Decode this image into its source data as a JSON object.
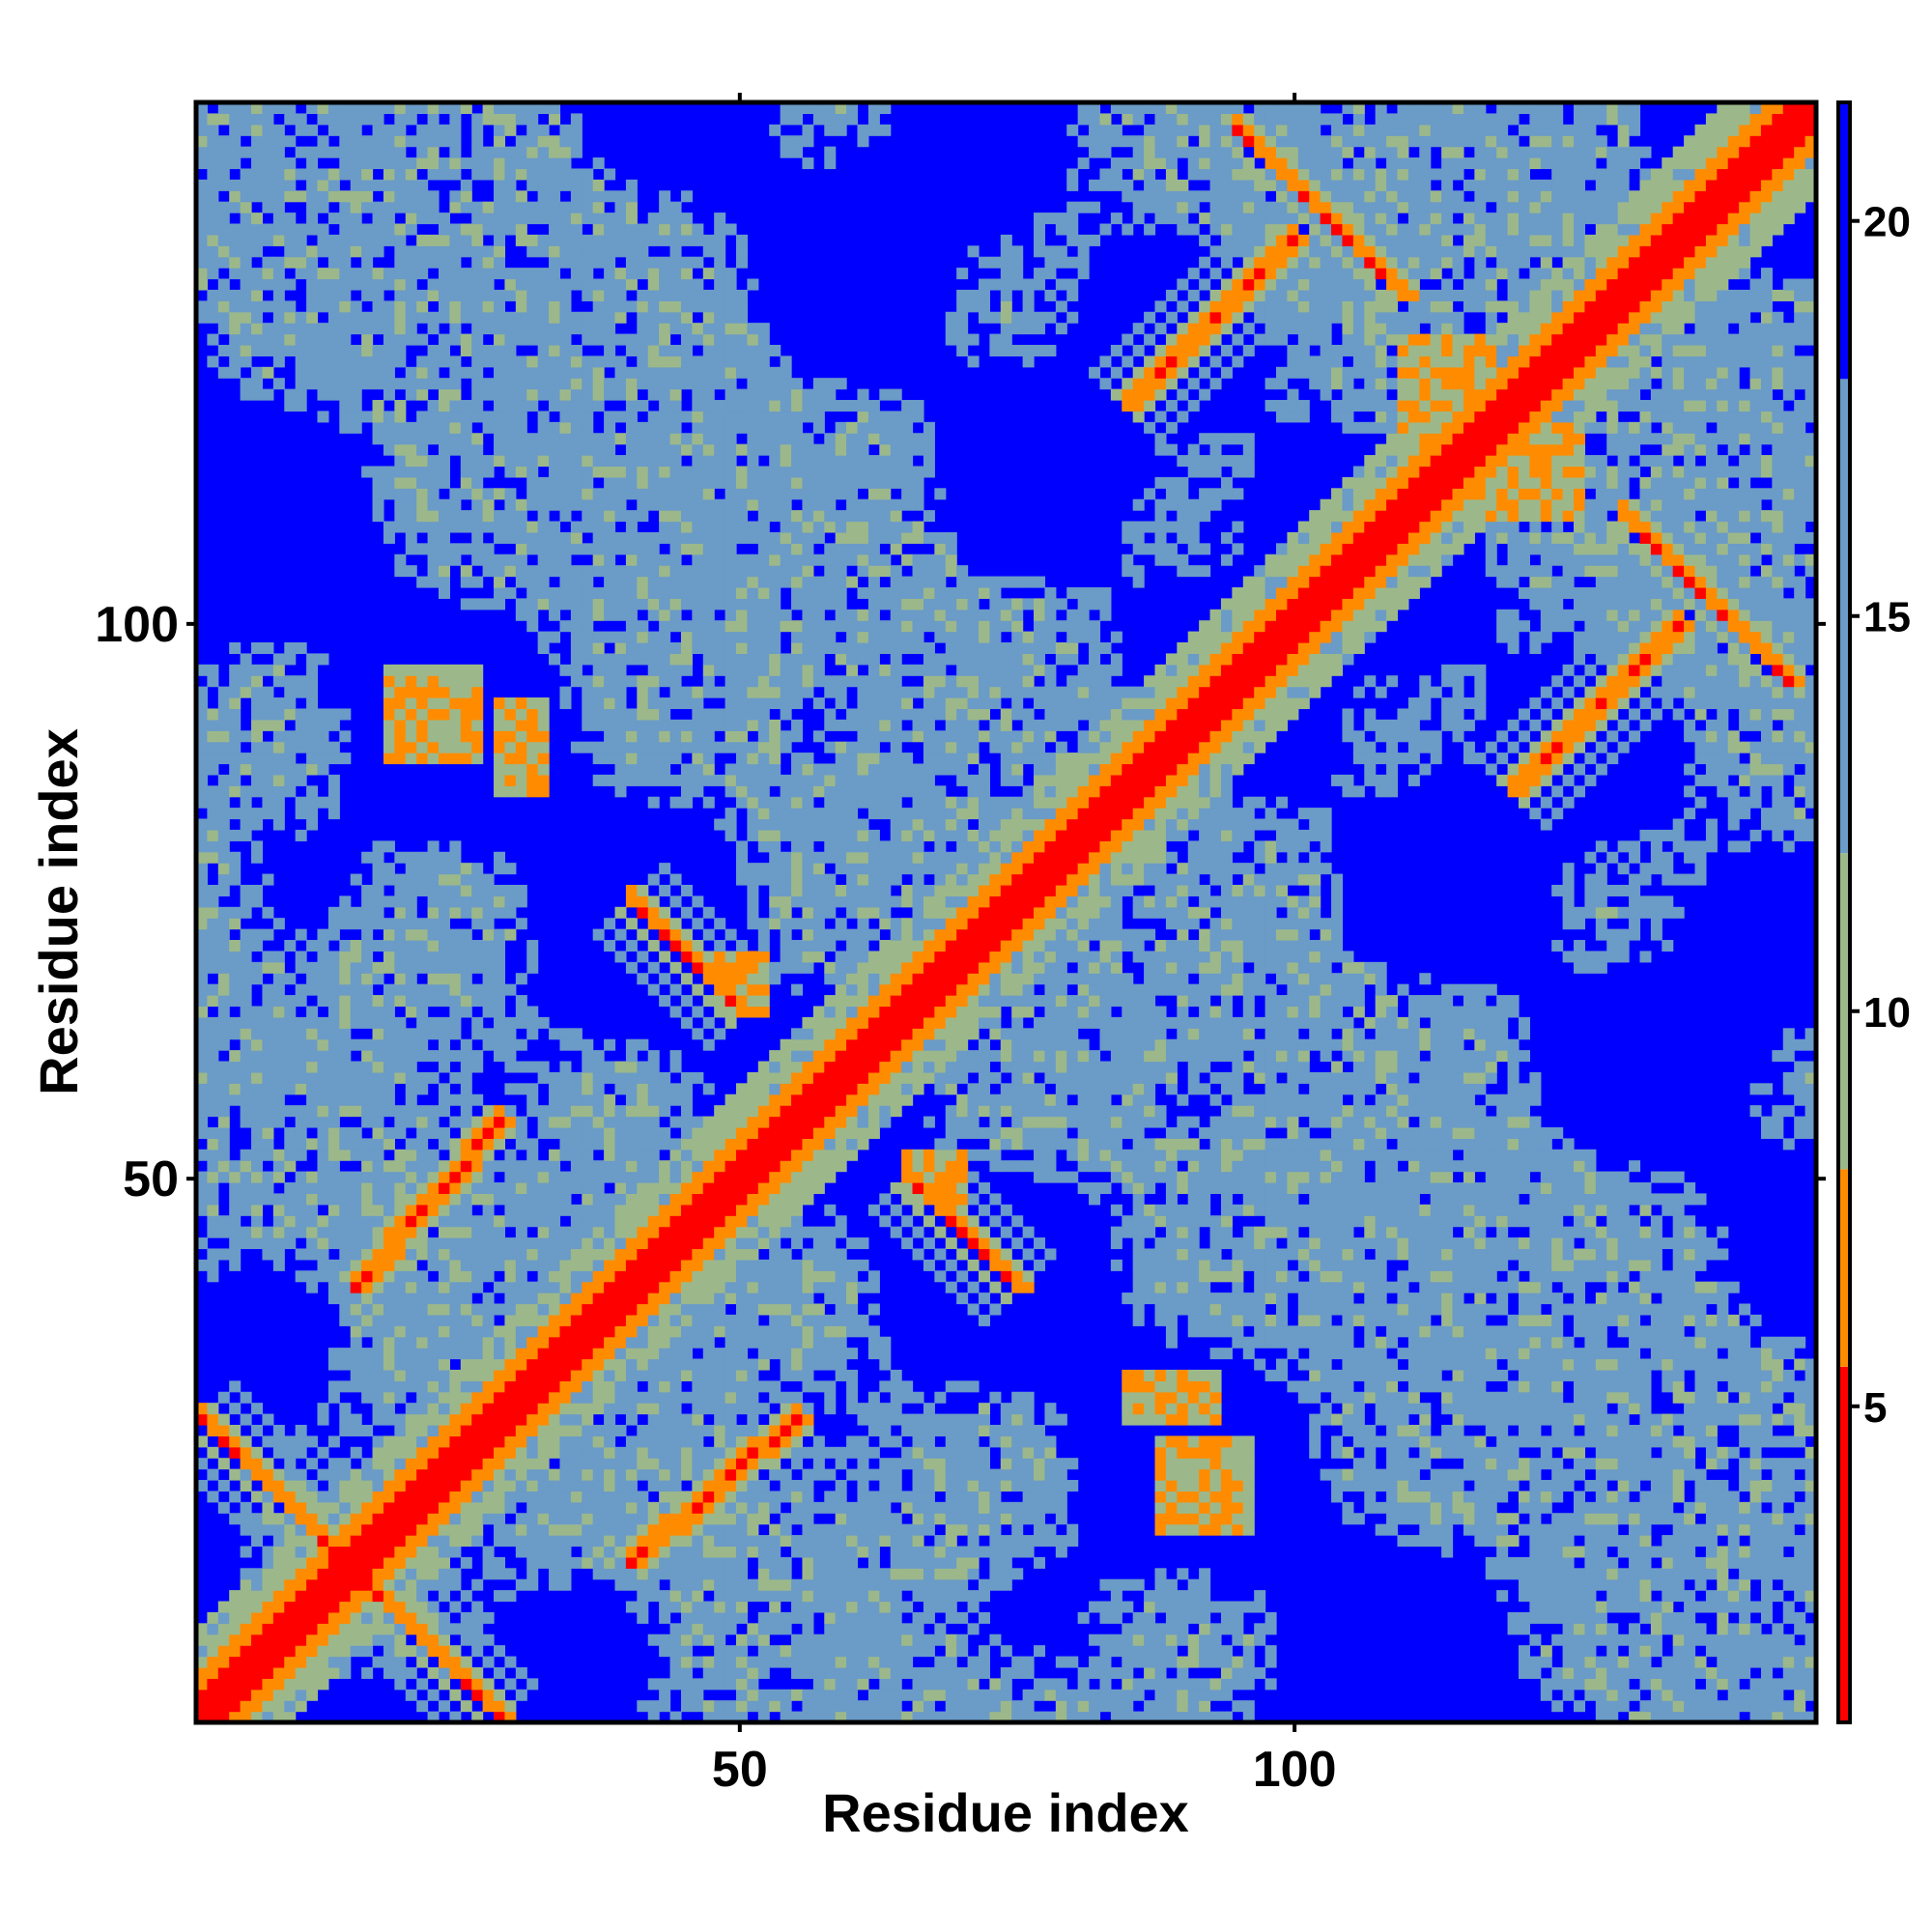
{
  "chart_data": {
    "type": "heatmap",
    "title": "",
    "xlabel": "Residue index",
    "ylabel": "Residue index",
    "n_residues": 147,
    "xlim": [
      1,
      147
    ],
    "ylim": [
      1,
      147
    ],
    "x_ticks": [
      50,
      100
    ],
    "y_ticks": [
      50,
      100
    ],
    "x_tick_labels": [
      "50",
      "100"
    ],
    "y_tick_labels": [
      "50",
      "100"
    ],
    "colorbar": {
      "range": [
        1,
        21.5
      ],
      "ticks": [
        5,
        10,
        15,
        20
      ],
      "tick_labels": [
        "5",
        "10",
        "15",
        "20"
      ],
      "bands": [
        {
          "from": 1,
          "to": 5.5,
          "color": "#ff0000"
        },
        {
          "from": 5.5,
          "to": 8,
          "color": "#ff8c00"
        },
        {
          "from": 8,
          "to": 12,
          "color": "#9cb88a"
        },
        {
          "from": 12,
          "to": 18,
          "color": "#6b9bc7"
        },
        {
          "from": 18,
          "to": 21.5,
          "color": "#0000ff"
        }
      ]
    },
    "colors": {
      "contact": "#ff0000",
      "close": "#ff8c00",
      "mid": "#9cb88a",
      "far": "#6b9bc7",
      "background": "#0000ff",
      "frame": "#000000"
    },
    "grid": false,
    "matrix_encoding": "symmetric distance map; values estimated from color bands",
    "contact_features": [
      {
        "type": "diagonal",
        "note": "main diagonal, distance ~1-4"
      },
      {
        "type": "antiparallel",
        "i": [
          1,
          14
        ],
        "j": [
          15,
          28
        ]
      },
      {
        "type": "parallel",
        "i": [
          15,
          28
        ],
        "j": [
          40,
          55
        ]
      },
      {
        "type": "antiparallel",
        "i": [
          40,
          50
        ],
        "j": [
          65,
          75
        ]
      },
      {
        "type": "parallel",
        "i": [
          85,
          100
        ],
        "j": [
          120,
          135
        ]
      },
      {
        "type": "antiparallel",
        "i": [
          95,
          110
        ],
        "j": [
          130,
          145
        ]
      },
      {
        "type": "cluster",
        "i": [
          28,
          32
        ],
        "j": [
          85,
          93
        ]
      },
      {
        "type": "cluster",
        "i": [
          48,
          52
        ],
        "j": [
          65,
          70
        ]
      },
      {
        "type": "cluster",
        "i": [
          88,
          96
        ],
        "j": [
          18,
          26
        ]
      },
      {
        "type": "cluster",
        "i": [
          110,
          118
        ],
        "j": [
          112,
          126
        ]
      }
    ]
  }
}
